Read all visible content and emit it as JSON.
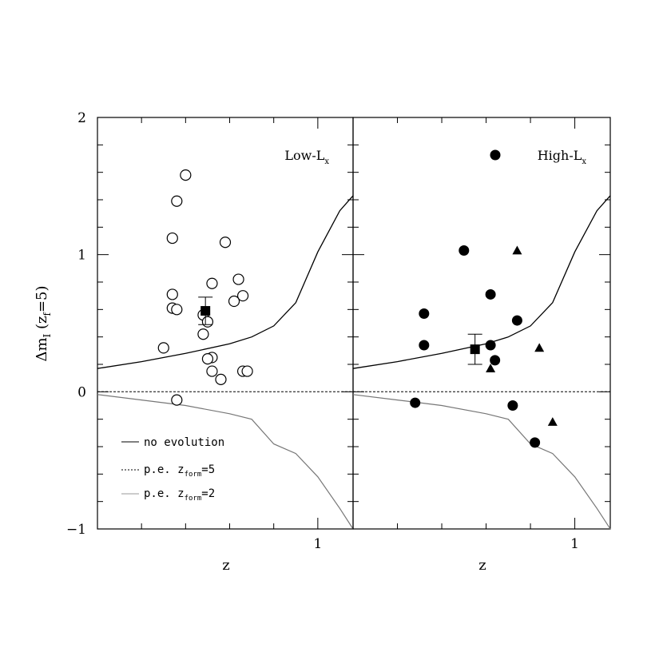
{
  "figure": {
    "ylabel": "Δm",
    "ylabel_sub": "I",
    "ylabel_rest": " (z",
    "ylabel_sub2": "f",
    "ylabel_end": "=5)",
    "xlabel": "z"
  },
  "legend": {
    "no_evolution": "no evolution",
    "pe5_prefix": "p.e. z",
    "pe5_sub": "form",
    "pe5_suffix": "=5",
    "pe2_prefix": "p.e. z",
    "pe2_sub": "form",
    "pe2_suffix": "=2"
  },
  "chart_data": [
    {
      "type": "scatter",
      "panel": "left",
      "label": "Low-L",
      "label_sub": "x",
      "x_tick_labels": [
        "1"
      ],
      "y_tick_labels": [
        "2",
        "1",
        "0",
        "−1"
      ],
      "ylim": [
        -1,
        2
      ],
      "xlim": [
        0.5,
        1.08
      ],
      "curves": {
        "no_evolution": [
          [
            0.5,
            0.17
          ],
          [
            0.6,
            0.22
          ],
          [
            0.7,
            0.28
          ],
          [
            0.8,
            0.35
          ],
          [
            0.85,
            0.4
          ],
          [
            0.9,
            0.48
          ],
          [
            0.95,
            0.65
          ],
          [
            1.0,
            1.02
          ],
          [
            1.05,
            1.32
          ],
          [
            1.08,
            1.43
          ]
        ],
        "pe_zform5": [
          [
            0.5,
            0.0
          ],
          [
            1.08,
            0.0
          ]
        ],
        "pe_zform2": [
          [
            0.5,
            -0.02
          ],
          [
            0.6,
            -0.06
          ],
          [
            0.7,
            -0.1
          ],
          [
            0.8,
            -0.16
          ],
          [
            0.85,
            -0.2
          ],
          [
            0.9,
            -0.38
          ],
          [
            0.95,
            -0.45
          ],
          [
            1.0,
            -0.62
          ],
          [
            1.05,
            -0.85
          ],
          [
            1.08,
            -1.0
          ]
        ]
      },
      "points_open_circle": [
        {
          "x": 0.7,
          "y": 1.58
        },
        {
          "x": 0.68,
          "y": 1.39
        },
        {
          "x": 0.67,
          "y": 1.12
        },
        {
          "x": 0.79,
          "y": 1.09
        },
        {
          "x": 0.82,
          "y": 0.82
        },
        {
          "x": 0.76,
          "y": 0.79
        },
        {
          "x": 0.67,
          "y": 0.71
        },
        {
          "x": 0.83,
          "y": 0.7
        },
        {
          "x": 0.81,
          "y": 0.66
        },
        {
          "x": 0.67,
          "y": 0.61
        },
        {
          "x": 0.68,
          "y": 0.6
        },
        {
          "x": 0.74,
          "y": 0.56
        },
        {
          "x": 0.75,
          "y": 0.51
        },
        {
          "x": 0.74,
          "y": 0.42
        },
        {
          "x": 0.65,
          "y": 0.32
        },
        {
          "x": 0.76,
          "y": 0.25
        },
        {
          "x": 0.75,
          "y": 0.24
        },
        {
          "x": 0.76,
          "y": 0.15
        },
        {
          "x": 0.83,
          "y": 0.15
        },
        {
          "x": 0.84,
          "y": 0.15
        },
        {
          "x": 0.78,
          "y": 0.09
        },
        {
          "x": 0.68,
          "y": -0.06
        }
      ],
      "mean_square": {
        "x": 0.745,
        "y": 0.59,
        "err": 0.1
      }
    },
    {
      "type": "scatter",
      "panel": "right",
      "label": "High-L",
      "label_sub": "x",
      "x_tick_labels": [
        "1"
      ],
      "y_tick_labels": [],
      "ylim": [
        -1,
        2
      ],
      "xlim": [
        0.5,
        1.08
      ],
      "curves": {
        "no_evolution": [
          [
            0.5,
            0.17
          ],
          [
            0.6,
            0.22
          ],
          [
            0.7,
            0.28
          ],
          [
            0.8,
            0.35
          ],
          [
            0.85,
            0.4
          ],
          [
            0.9,
            0.48
          ],
          [
            0.95,
            0.65
          ],
          [
            1.0,
            1.02
          ],
          [
            1.05,
            1.32
          ],
          [
            1.08,
            1.43
          ]
        ],
        "pe_zform5": [
          [
            0.5,
            0.0
          ],
          [
            1.08,
            0.0
          ]
        ],
        "pe_zform2": [
          [
            0.5,
            -0.02
          ],
          [
            0.6,
            -0.06
          ],
          [
            0.7,
            -0.1
          ],
          [
            0.8,
            -0.16
          ],
          [
            0.85,
            -0.2
          ],
          [
            0.9,
            -0.38
          ],
          [
            0.95,
            -0.45
          ],
          [
            1.0,
            -0.62
          ],
          [
            1.05,
            -0.85
          ],
          [
            1.08,
            -1.0
          ]
        ]
      },
      "legend_marker": "filled-circle",
      "points_filled_circle": [
        {
          "x": 0.75,
          "y": 1.03
        },
        {
          "x": 0.81,
          "y": 0.71
        },
        {
          "x": 0.66,
          "y": 0.57
        },
        {
          "x": 0.87,
          "y": 0.52
        },
        {
          "x": 0.66,
          "y": 0.34
        },
        {
          "x": 0.81,
          "y": 0.34
        },
        {
          "x": 0.82,
          "y": 0.23
        },
        {
          "x": 0.86,
          "y": -0.1
        },
        {
          "x": 0.64,
          "y": -0.08
        },
        {
          "x": 0.91,
          "y": -0.37
        }
      ],
      "points_triangle": [
        {
          "x": 0.87,
          "y": 1.03
        },
        {
          "x": 0.92,
          "y": 0.32
        },
        {
          "x": 0.81,
          "y": 0.17
        },
        {
          "x": 0.95,
          "y": -0.22
        }
      ],
      "mean_square": {
        "x": 0.775,
        "y": 0.31,
        "err": 0.11
      }
    }
  ]
}
